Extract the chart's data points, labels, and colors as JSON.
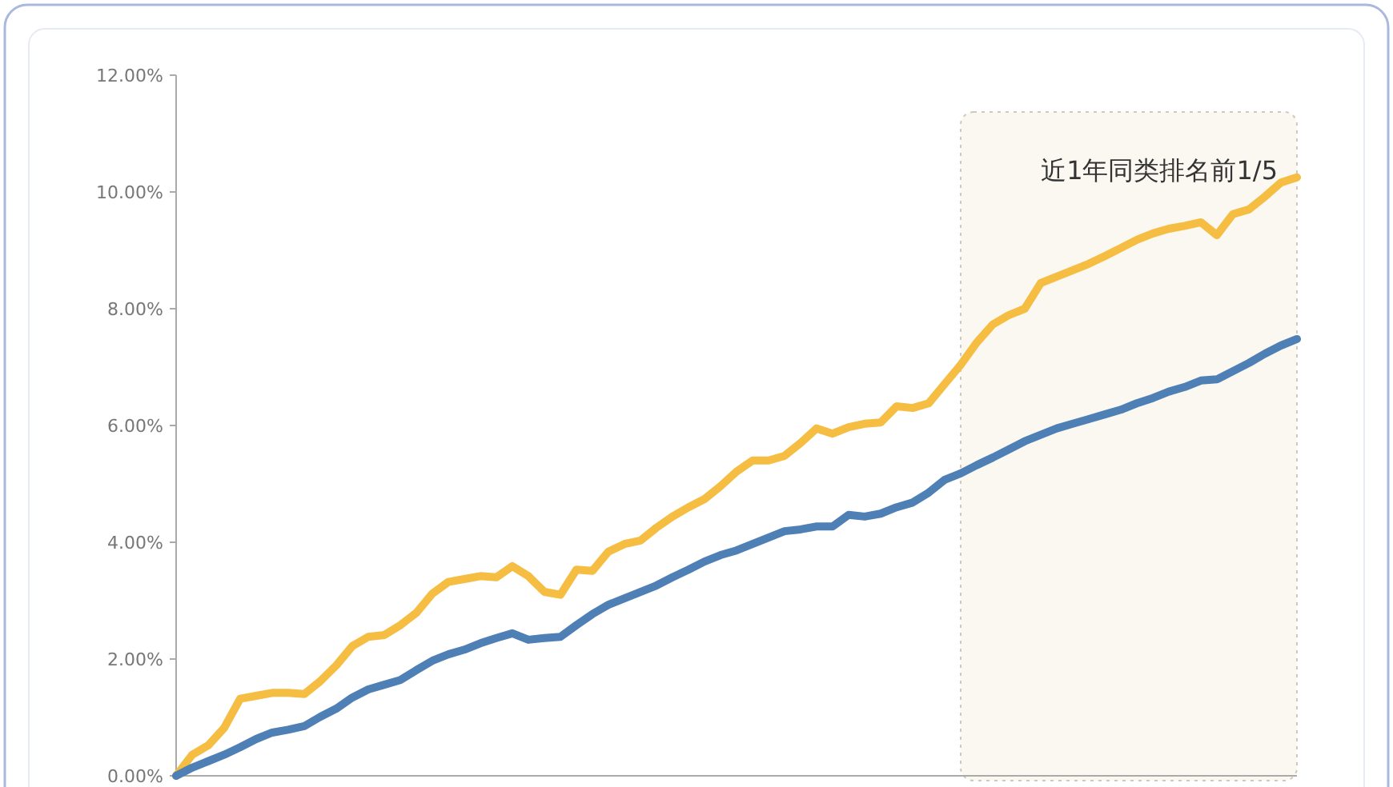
{
  "chart_data": {
    "type": "line",
    "categories": [
      null,
      null,
      null,
      null,
      null,
      null,
      null,
      null,
      null,
      null,
      null,
      null,
      null,
      null,
      null,
      null,
      null,
      null,
      null,
      null,
      null,
      null,
      null,
      null,
      null,
      null,
      null,
      null,
      null,
      null,
      null,
      null,
      null,
      null,
      null,
      null,
      null,
      null,
      null,
      null,
      null,
      null,
      null,
      null,
      null,
      null,
      null,
      null,
      null,
      null,
      null,
      null,
      null,
      null,
      null,
      null,
      null,
      null,
      null,
      null,
      null,
      null,
      null,
      null,
      null,
      null,
      null,
      null,
      null,
      null,
      null
    ],
    "ylim": [
      0,
      12
    ],
    "yticks": [
      {
        "value": 0,
        "label": "0.00%"
      },
      {
        "value": 2,
        "label": "2.00%"
      },
      {
        "value": 4,
        "label": "4.00%"
      },
      {
        "value": 6,
        "label": "6.00%"
      },
      {
        "value": 8,
        "label": "8.00%"
      },
      {
        "value": 10,
        "label": "10.00%"
      },
      {
        "value": 12,
        "label": "12.00%"
      }
    ],
    "series": [
      {
        "color": "#f5bd42",
        "values": [
          0,
          0.36,
          0.52,
          0.82,
          1.32,
          1.37,
          1.42,
          1.42,
          1.4,
          1.62,
          1.89,
          2.22,
          2.38,
          2.41,
          2.58,
          2.79,
          3.12,
          3.32,
          3.37,
          3.42,
          3.4,
          3.59,
          3.42,
          3.15,
          3.1,
          3.53,
          3.51,
          3.84,
          3.97,
          4.03,
          4.25,
          4.44,
          4.6,
          4.74,
          4.96,
          5.21,
          5.4,
          5.4,
          5.48,
          5.7,
          5.95,
          5.86,
          5.97,
          6.03,
          6.05,
          6.33,
          6.3,
          6.38,
          6.71,
          7.04,
          7.42,
          7.73,
          7.89,
          8.0,
          8.44,
          8.55,
          8.66,
          8.77,
          8.9,
          9.04,
          9.18,
          9.29,
          9.37,
          9.42,
          9.48,
          9.26,
          9.62,
          9.7,
          9.92,
          10.16,
          10.25
        ]
      },
      {
        "color": "#4e7fb5",
        "values": [
          0,
          0.14,
          0.25,
          0.36,
          0.49,
          0.63,
          0.74,
          0.79,
          0.85,
          1.01,
          1.15,
          1.34,
          1.48,
          1.56,
          1.64,
          1.81,
          1.97,
          2.08,
          2.16,
          2.27,
          2.36,
          2.44,
          2.33,
          2.36,
          2.38,
          2.58,
          2.77,
          2.93,
          3.04,
          3.15,
          3.26,
          3.4,
          3.53,
          3.67,
          3.78,
          3.86,
          3.97,
          4.08,
          4.19,
          4.22,
          4.27,
          4.27,
          4.47,
          4.44,
          4.49,
          4.6,
          4.68,
          4.85,
          5.07,
          5.18,
          5.32,
          5.45,
          5.59,
          5.73,
          5.84,
          5.95,
          6.03,
          6.11,
          6.19,
          6.27,
          6.38,
          6.47,
          6.58,
          6.66,
          6.77,
          6.79,
          6.93,
          7.07,
          7.23,
          7.37,
          7.48
        ]
      }
    ],
    "annotations": [
      "近1年同类排名前1/5"
    ]
  }
}
